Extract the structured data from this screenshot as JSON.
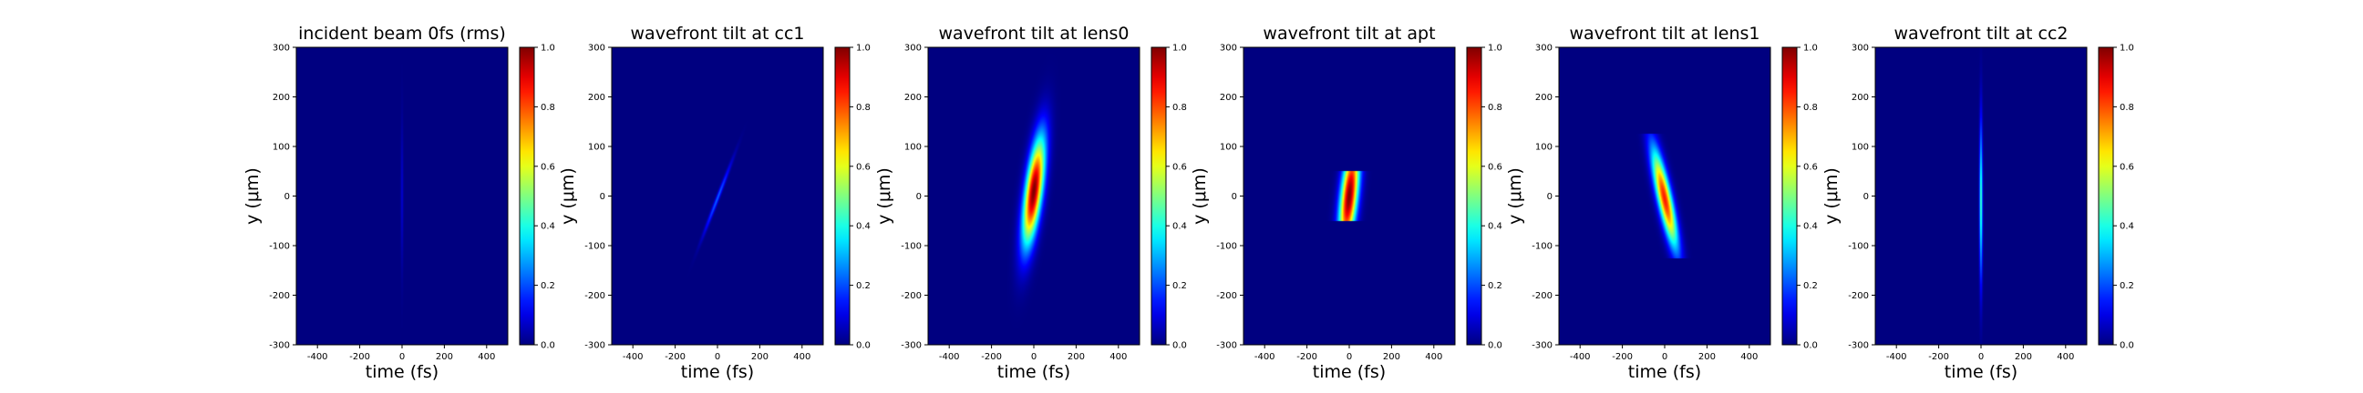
{
  "figure": {
    "background": "#ffffff"
  },
  "chart_data": [
    {
      "type": "heatmap",
      "title": "incident beam 0fs (rms)",
      "xlabel": "time (fs)",
      "ylabel": "y (μm)",
      "xlim": [
        -500,
        500
      ],
      "ylim": [
        -300,
        300
      ],
      "xticks": [
        -400,
        -200,
        0,
        200,
        400
      ],
      "yticks": [
        -300,
        -200,
        -100,
        0,
        100,
        200,
        300
      ],
      "colorbar": {
        "ticks": [
          "0.0",
          "0.2",
          "0.4",
          "0.6",
          "0.8",
          "1.0"
        ],
        "colormap": "jet",
        "range": [
          0,
          1
        ]
      },
      "blobs": [
        {
          "center": [
            0,
            0
          ],
          "width_fs": 4,
          "height_um": 100,
          "tilt_fs_per_um": 0,
          "peak": 0.08
        }
      ]
    },
    {
      "type": "heatmap",
      "title": "wavefront tilt at cc1",
      "xlabel": "time (fs)",
      "ylabel": "y (μm)",
      "xlim": [
        -500,
        500
      ],
      "ylim": [
        -300,
        300
      ],
      "xticks": [
        -400,
        -200,
        0,
        200,
        400
      ],
      "yticks": [
        -300,
        -200,
        -100,
        0,
        100,
        200,
        300
      ],
      "colorbar": {
        "ticks": [
          "0.0",
          "0.2",
          "0.4",
          "0.6",
          "0.8",
          "1.0"
        ],
        "colormap": "jet",
        "range": [
          0,
          1
        ]
      },
      "blobs": [
        {
          "center": [
            0,
            -5
          ],
          "width_fs": 6,
          "height_um": 50,
          "tilt_fs_per_um": 0.9,
          "peak": 0.22
        }
      ]
    },
    {
      "type": "heatmap",
      "title": "wavefront tilt at lens0",
      "xlabel": "time (fs)",
      "ylabel": "y (μm)",
      "xlim": [
        -500,
        500
      ],
      "ylim": [
        -300,
        300
      ],
      "xticks": [
        -400,
        -200,
        0,
        200,
        400
      ],
      "yticks": [
        -300,
        -200,
        -100,
        0,
        100,
        200,
        300
      ],
      "colorbar": {
        "ticks": [
          "0.0",
          "0.2",
          "0.4",
          "0.6",
          "0.8",
          "1.0"
        ],
        "colormap": "jet",
        "range": [
          0,
          1
        ]
      },
      "blobs": [
        {
          "center": [
            0,
            10
          ],
          "width_fs": 28,
          "height_um": 75,
          "tilt_fs_per_um": 0.3,
          "peak": 1.0
        }
      ]
    },
    {
      "type": "heatmap",
      "title": "wavefront tilt at apt",
      "xlabel": "time (fs)",
      "ylabel": "y (μm)",
      "xlim": [
        -500,
        500
      ],
      "ylim": [
        -300,
        300
      ],
      "xticks": [
        -400,
        -200,
        0,
        200,
        400
      ],
      "yticks": [
        -300,
        -200,
        -100,
        0,
        100,
        200,
        300
      ],
      "colorbar": {
        "ticks": [
          "0.0",
          "0.2",
          "0.4",
          "0.6",
          "0.8",
          "1.0"
        ],
        "colormap": "jet",
        "range": [
          0,
          1
        ]
      },
      "blobs": [
        {
          "center": [
            0,
            0
          ],
          "width_fs": 28,
          "height_um": 75,
          "tilt_fs_per_um": 0.25,
          "peak": 1.0,
          "aperture_um": 50
        }
      ]
    },
    {
      "type": "heatmap",
      "title": "wavefront tilt at lens1",
      "xlabel": "time (fs)",
      "ylabel": "y (μm)",
      "xlim": [
        -500,
        500
      ],
      "ylim": [
        -300,
        300
      ],
      "xticks": [
        -400,
        -200,
        0,
        200,
        400
      ],
      "yticks": [
        -300,
        -200,
        -100,
        0,
        100,
        200,
        300
      ],
      "colorbar": {
        "ticks": [
          "0.0",
          "0.2",
          "0.4",
          "0.6",
          "0.8",
          "1.0"
        ],
        "colormap": "jet",
        "range": [
          0,
          1
        ]
      },
      "blobs": [
        {
          "center": [
            0,
            -5
          ],
          "width_fs": 24,
          "height_um": 70,
          "tilt_fs_per_um": -0.5,
          "peak": 0.85,
          "aperture_um": 125
        }
      ]
    },
    {
      "type": "heatmap",
      "title": "wavefront tilt at cc2",
      "xlabel": "time (fs)",
      "ylabel": "y (μm)",
      "xlim": [
        -500,
        500
      ],
      "ylim": [
        -300,
        300
      ],
      "xticks": [
        -400,
        -200,
        0,
        200,
        400
      ],
      "yticks": [
        -300,
        -200,
        -100,
        0,
        100,
        200,
        300
      ],
      "colorbar": {
        "ticks": [
          "0.0",
          "0.2",
          "0.4",
          "0.6",
          "0.8",
          "1.0"
        ],
        "colormap": "jet",
        "range": [
          0,
          1
        ]
      },
      "blobs": [
        {
          "center": [
            0,
            -10
          ],
          "width_fs": 5,
          "height_um": 110,
          "tilt_fs_per_um": 0,
          "peak": 0.45
        }
      ]
    }
  ]
}
